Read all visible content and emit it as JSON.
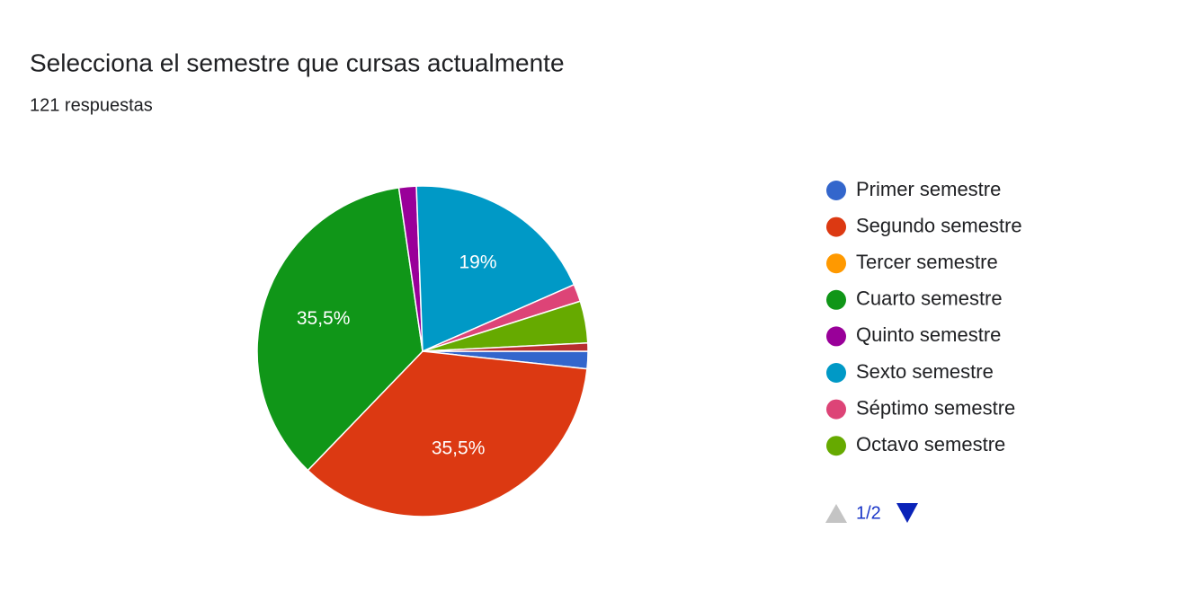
{
  "chart_data": {
    "type": "pie",
    "title": "Selecciona el semestre que cursas actualmente",
    "subtitle": "121 respuestas",
    "categories": [
      "Primer semestre",
      "Segundo semestre",
      "Tercer semestre",
      "Cuarto semestre",
      "Quinto semestre",
      "Sexto semestre",
      "Séptimo semestre",
      "Octavo semestre",
      null
    ],
    "values": [
      1.7,
      35.5,
      0,
      35.5,
      1.7,
      19,
      1.7,
      4.1,
      0.8
    ],
    "value_labels": [
      null,
      "35,5%",
      null,
      "35,5%",
      null,
      "19%",
      null,
      null,
      null
    ],
    "colors": [
      "#3366cc",
      "#dc3912",
      "#ff9900",
      "#109618",
      "#990099",
      "#0099c6",
      "#dd4477",
      "#66aa00",
      "#b82e2e"
    ],
    "legend_page": "1/2"
  }
}
